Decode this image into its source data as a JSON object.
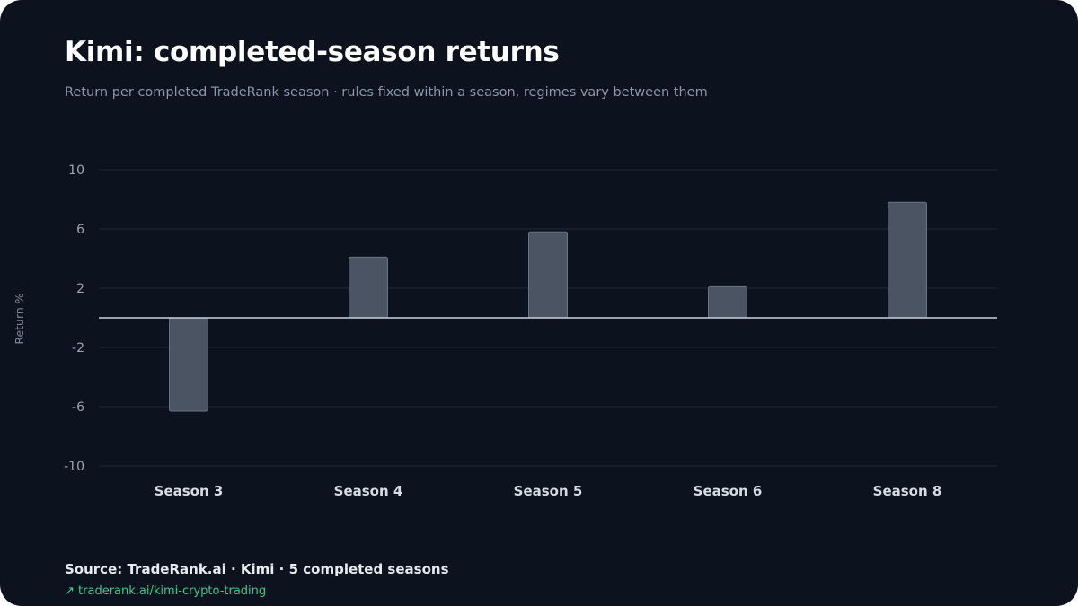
{
  "chart_data": {
    "type": "bar",
    "title": "Kimi: completed-season returns",
    "subtitle": "Return per completed TradeRank season · rules fixed within a season, regimes vary between them",
    "xlabel": "",
    "ylabel": "Return %",
    "categories": [
      "Season 3",
      "Season 4",
      "Season 5",
      "Season 6",
      "Season 8"
    ],
    "values": [
      -6.3,
      4.1,
      5.8,
      2.1,
      7.8
    ],
    "ylim": [
      -10,
      10
    ],
    "yticks": [
      10,
      6,
      2,
      -2,
      -6,
      -10
    ],
    "grid": true,
    "bar_color": "#4a5462"
  },
  "footer": {
    "source": "Source: TradeRank.ai · Kimi · 5 completed seasons",
    "link_icon": "↗",
    "link_text": "traderank.ai/kimi-crypto-trading"
  },
  "colors": {
    "background": "#0c131f",
    "grid": "#1e2a33",
    "zero_line": "#c9d2dd",
    "accent": "#3fc98a"
  }
}
